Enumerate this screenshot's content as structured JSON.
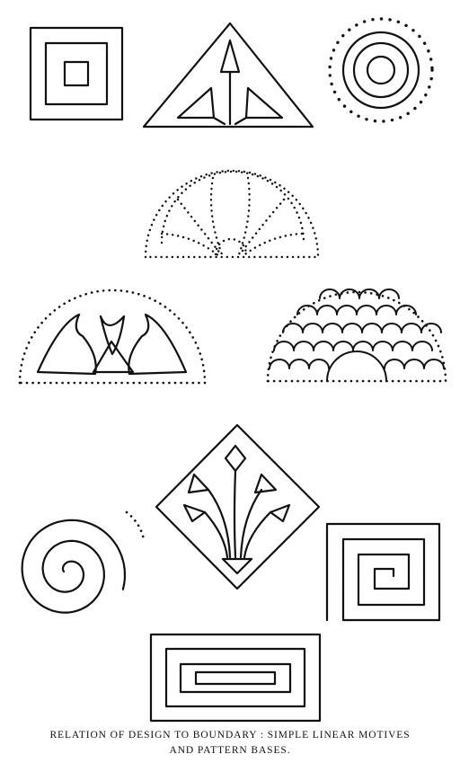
{
  "caption": {
    "line1": "RELATION OF DESIGN TO BOUNDARY : SIMPLE LINEAR MOTIVES",
    "line2": "AND PATTERN BASES."
  },
  "colors": {
    "ink": "#111111",
    "paper": "#ffffff"
  },
  "figures": [
    {
      "name": "nested-squares-motif"
    },
    {
      "name": "triangle-arrow-motif"
    },
    {
      "name": "concentric-circles-dotted-motif"
    },
    {
      "name": "dotted-half-circle-fan-motif"
    },
    {
      "name": "half-circle-leaf-motif"
    },
    {
      "name": "half-circle-scale-motif"
    },
    {
      "name": "diamond-lily-motif"
    },
    {
      "name": "spiral-motif"
    },
    {
      "name": "square-fret-spiral-motif"
    },
    {
      "name": "nested-rectangles-motif"
    }
  ]
}
